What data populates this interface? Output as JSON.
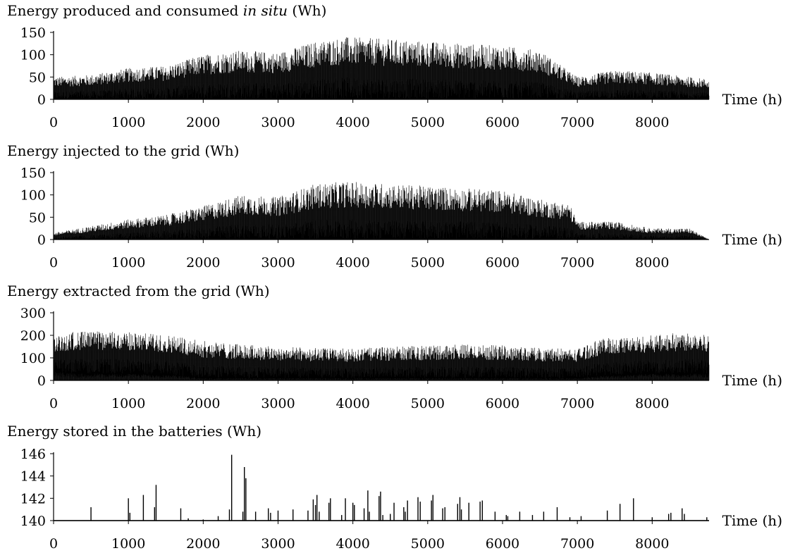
{
  "chart_data": [
    {
      "type": "line",
      "title": "Energy produced and consumed",
      "title_italic": "in situ",
      "title_unit": "(Wh)",
      "xlabel": "Time (h)",
      "ylabel": "",
      "xlim": [
        0,
        8760
      ],
      "ylim": [
        0,
        150
      ],
      "xticks": [
        0,
        1000,
        2000,
        3000,
        4000,
        5000,
        6000,
        7000,
        8000
      ],
      "yticks": [
        0,
        50,
        100,
        150
      ],
      "envelope": {
        "x": [
          0,
          500,
          1000,
          1500,
          2000,
          2500,
          3000,
          3500,
          3900,
          4500,
          5000,
          5500,
          6000,
          6500,
          7000,
          7500,
          8000,
          8500,
          8760
        ],
        "peak_max": [
          50,
          55,
          70,
          75,
          100,
          110,
          105,
          130,
          140,
          135,
          130,
          125,
          120,
          110,
          50,
          65,
          60,
          50,
          45
        ]
      }
    },
    {
      "type": "line",
      "title": "Energy injected to the grid (Wh)",
      "xlabel": "Time (h)",
      "ylabel": "",
      "xlim": [
        0,
        8760
      ],
      "ylim": [
        0,
        150
      ],
      "xticks": [
        0,
        1000,
        2000,
        3000,
        4000,
        5000,
        6000,
        7000,
        8000
      ],
      "yticks": [
        0,
        50,
        100,
        150
      ],
      "envelope": {
        "x": [
          0,
          500,
          1000,
          1500,
          2000,
          2500,
          3000,
          3500,
          3900,
          4500,
          5000,
          5500,
          6000,
          6500,
          6900,
          7000,
          7500,
          8000,
          8500,
          8760
        ],
        "peak_max": [
          15,
          30,
          45,
          55,
          75,
          100,
          95,
          125,
          130,
          125,
          120,
          115,
          110,
          90,
          80,
          40,
          40,
          25,
          25,
          0
        ]
      }
    },
    {
      "type": "line",
      "title": "Energy extracted from the grid (Wh)",
      "xlabel": "Time (h)",
      "ylabel": "",
      "xlim": [
        0,
        8760
      ],
      "ylim": [
        0,
        300
      ],
      "xticks": [
        0,
        1000,
        2000,
        3000,
        4000,
        5000,
        6000,
        7000,
        8000
      ],
      "yticks": [
        0,
        100,
        200,
        300
      ],
      "envelope": {
        "x": [
          0,
          300,
          1000,
          1600,
          2000,
          2500,
          3000,
          3500,
          4000,
          4500,
          5000,
          5500,
          6000,
          6500,
          7000,
          7300,
          8000,
          8600,
          8760
        ],
        "peak_max": [
          190,
          220,
          215,
          200,
          175,
          160,
          150,
          145,
          140,
          150,
          155,
          160,
          155,
          145,
          140,
          185,
          200,
          220,
          200
        ],
        "floor_min": [
          40,
          30,
          30,
          25,
          10,
          10,
          10,
          10,
          10,
          10,
          10,
          10,
          10,
          10,
          10,
          20,
          30,
          30,
          30
        ]
      }
    },
    {
      "type": "line",
      "title": "Energy stored in the batteries (Wh)",
      "xlabel": "Time (h)",
      "ylabel": "",
      "xlim": [
        0,
        8760
      ],
      "ylim": [
        140,
        146
      ],
      "xticks": [
        0,
        1000,
        2000,
        3000,
        4000,
        5000,
        6000,
        7000,
        8000
      ],
      "yticks": [
        140,
        142,
        144,
        146
      ],
      "baseline": 140,
      "spikes": {
        "x": [
          500,
          1000,
          1020,
          1200,
          1350,
          1370,
          1700,
          1800,
          2000,
          2200,
          2350,
          2380,
          2530,
          2550,
          2570,
          2700,
          2870,
          2900,
          3000,
          3200,
          3400,
          3470,
          3500,
          3520,
          3550,
          3680,
          3700,
          3850,
          3900,
          4000,
          4020,
          4150,
          4200,
          4220,
          4350,
          4370,
          4400,
          4500,
          4550,
          4680,
          4700,
          4730,
          4870,
          4900,
          5050,
          5070,
          5200,
          5230,
          5400,
          5430,
          5450,
          5550,
          5700,
          5730,
          5900,
          6050,
          6070,
          6230,
          6400,
          6550,
          6730,
          6900,
          7050,
          7400,
          7570,
          7750,
          8000,
          8220,
          8250,
          8400,
          8430,
          8730
        ],
        "values": [
          141.2,
          142.0,
          140.7,
          142.3,
          141.2,
          143.2,
          141.1,
          140.2,
          140.1,
          140.4,
          141.0,
          145.9,
          140.8,
          144.8,
          143.8,
          140.8,
          141.1,
          140.7,
          140.9,
          141.0,
          140.9,
          141.9,
          141.4,
          142.3,
          140.8,
          141.6,
          142.0,
          140.5,
          142.0,
          141.6,
          141.4,
          141.1,
          142.7,
          140.8,
          142.2,
          142.6,
          140.5,
          140.6,
          141.6,
          141.2,
          140.8,
          141.8,
          142.1,
          141.7,
          141.8,
          142.3,
          141.1,
          141.2,
          141.5,
          142.1,
          141.0,
          141.6,
          141.7,
          141.8,
          140.8,
          140.5,
          140.4,
          140.8,
          140.5,
          140.8,
          141.2,
          140.3,
          140.4,
          140.9,
          141.5,
          142.0,
          140.3,
          140.6,
          140.7,
          141.1,
          140.6,
          140.3
        ]
      }
    }
  ]
}
